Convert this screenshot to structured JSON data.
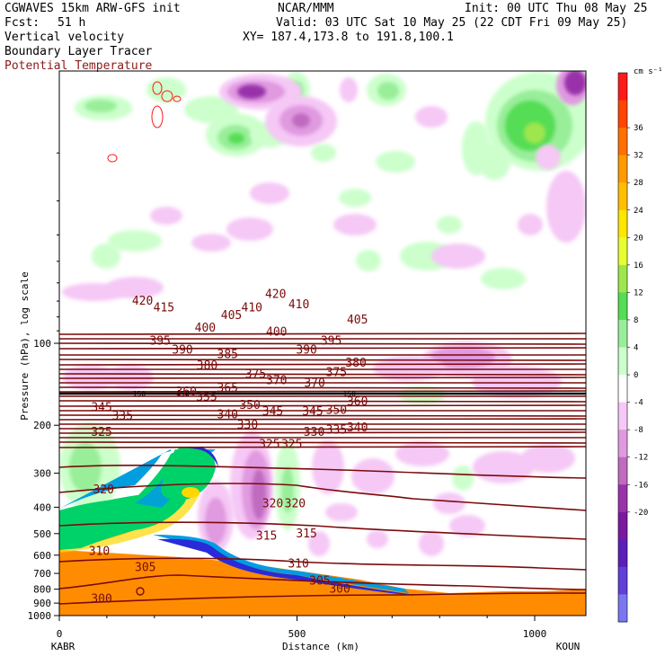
{
  "header": {
    "model": "CGWAVES 15km ARW-GFS init",
    "fcst_label": "Fcst:",
    "fcst_value": "51 h",
    "field1": "Vertical velocity",
    "field2": "Boundary Layer Tracer",
    "field3": "Potential Temperature",
    "org": "NCAR/MMM",
    "init": "Init: 00 UTC Thu 08 May 25",
    "valid": "Valid: 03 UTC Sat 10 May 25 (22 CDT Fri 09 May 25)",
    "xy": "XY= 187.4,173.8 to 191.8,100.1"
  },
  "colors": {
    "theta": "#7a0a0a",
    "field3_text": "#8b1a1a",
    "tracer": [
      "#ff8c00",
      "#ffd700",
      "#00d26a",
      "#009de0",
      "#2a2ad8"
    ]
  },
  "chart_data": {
    "type": "heatmap",
    "ylabel": "Pressure (hPa), log scale",
    "xlabel": "Distance (km)",
    "x_ticks": [
      "0",
      "500",
      "1000"
    ],
    "x_end_left": "KABR",
    "x_end_right": "KOUN",
    "y_ticks": [
      "100",
      "200",
      "300",
      "400",
      "500",
      "600",
      "700",
      "800",
      "900",
      "1000"
    ],
    "y_scale": "log",
    "y_range_hPa": [
      1000,
      10
    ],
    "colorbar": {
      "unit": "cm s⁻¹",
      "levels": [
        "36",
        "32",
        "28",
        "24",
        "20",
        "16",
        "12",
        "8",
        "4",
        "0",
        "-4",
        "-8",
        "-12",
        "-16",
        "-20"
      ],
      "colors": [
        "#ff1a1a",
        "#ff4500",
        "#ff7000",
        "#ff9a00",
        "#ffbf00",
        "#ffe600",
        "#e6ff33",
        "#9ee64d",
        "#55dd55",
        "#99ee99",
        "#ccffcc",
        "#ffffff",
        "#f5c8f5",
        "#e09ae0",
        "#c06ac0",
        "#9933aa",
        "#7a1aa0",
        "#5a20b8",
        "#6040d8",
        "#7a78f0"
      ]
    },
    "theta_labels": [
      {
        "v": "420",
        "x": 175,
        "p": 70
      },
      {
        "v": "415",
        "x": 220,
        "p": 74
      },
      {
        "v": "410",
        "x": 405,
        "p": 74
      },
      {
        "v": "420",
        "x": 455,
        "p": 66
      },
      {
        "v": "410",
        "x": 504,
        "p": 72
      },
      {
        "v": "405",
        "x": 362,
        "p": 79
      },
      {
        "v": "405",
        "x": 627,
        "p": 82
      },
      {
        "v": "400",
        "x": 307,
        "p": 88
      },
      {
        "v": "400",
        "x": 457,
        "p": 91
      },
      {
        "v": "395",
        "x": 212,
        "p": 98
      },
      {
        "v": "395",
        "x": 572,
        "p": 98
      },
      {
        "v": "390",
        "x": 259,
        "p": 106
      },
      {
        "v": "390",
        "x": 520,
        "p": 106
      },
      {
        "v": "385",
        "x": 354,
        "p": 110
      },
      {
        "v": "380",
        "x": 311,
        "p": 121
      },
      {
        "v": "380",
        "x": 624,
        "p": 118
      },
      {
        "v": "375",
        "x": 413,
        "p": 130
      },
      {
        "v": "375",
        "x": 583,
        "p": 128
      },
      {
        "v": "370",
        "x": 457,
        "p": 137
      },
      {
        "v": "370",
        "x": 537,
        "p": 140
      },
      {
        "v": "365",
        "x": 354,
        "p": 146
      },
      {
        "v": "360",
        "x": 267,
        "p": 151
      },
      {
        "v": "360",
        "x": 627,
        "p": 164
      },
      {
        "v": "355",
        "x": 310,
        "p": 158
      },
      {
        "v": "350",
        "x": 401,
        "p": 169
      },
      {
        "v": "350",
        "x": 583,
        "p": 176
      },
      {
        "v": "345",
        "x": 89,
        "p": 172
      },
      {
        "v": "345",
        "x": 449,
        "p": 178
      },
      {
        "v": "345",
        "x": 533,
        "p": 178
      },
      {
        "v": "340",
        "x": 354,
        "p": 183
      },
      {
        "v": "340",
        "x": 627,
        "p": 204
      },
      {
        "v": "335",
        "x": 133,
        "p": 185
      },
      {
        "v": "335",
        "x": 583,
        "p": 208
      },
      {
        "v": "330",
        "x": 396,
        "p": 200
      },
      {
        "v": "330",
        "x": 536,
        "p": 212
      },
      {
        "v": "325",
        "x": 89,
        "p": 212
      },
      {
        "v": "325",
        "x": 442,
        "p": 235
      },
      {
        "v": "325",
        "x": 489,
        "p": 235
      },
      {
        "v": "320",
        "x": 93,
        "p": 345
      },
      {
        "v": "320",
        "x": 449,
        "p": 388
      },
      {
        "v": "320",
        "x": 496,
        "p": 388
      },
      {
        "v": "315",
        "x": 436,
        "p": 510
      },
      {
        "v": "315",
        "x": 520,
        "p": 500
      },
      {
        "v": "310",
        "x": 84,
        "p": 580
      },
      {
        "v": "310",
        "x": 503,
        "p": 645
      },
      {
        "v": "305",
        "x": 181,
        "p": 665
      },
      {
        "v": "305",
        "x": 548,
        "p": 745
      },
      {
        "v": "300",
        "x": 89,
        "p": 870
      },
      {
        "v": "300",
        "x": 590,
        "p": 800
      }
    ],
    "theta_150_marks": [
      {
        "v": "150",
        "x": 168
      },
      {
        "v": "150",
        "x": 260
      },
      {
        "v": "150",
        "x": 610
      }
    ]
  }
}
